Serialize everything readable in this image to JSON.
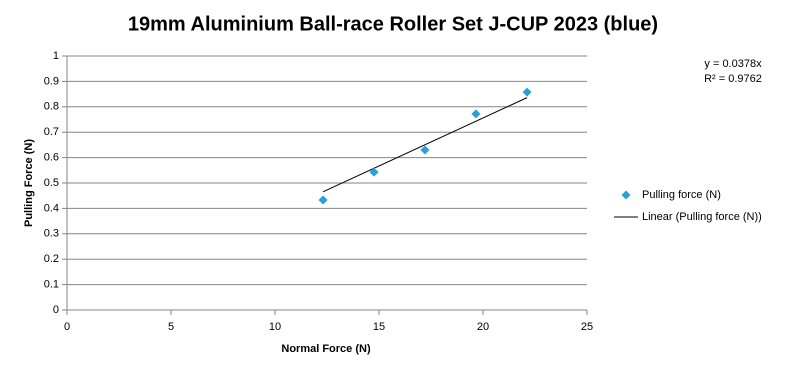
{
  "chart_data": {
    "type": "scatter",
    "title": "19mm Aluminium Ball-race Roller Set J-CUP 2023 (blue)",
    "x_label": "Normal Force (N)",
    "y_label": "Pulling Force (N)",
    "series": [
      {
        "name": "Pulling force (N)",
        "color": "#2a9fdb",
        "x": [
          12.31,
          14.76,
          17.21,
          19.66,
          22.12
        ],
        "values": [
          0.433,
          0.543,
          0.63,
          0.772,
          0.858
        ]
      }
    ],
    "trendline": {
      "name": "Linear (Pulling force (N))",
      "slope": 0.0378,
      "color": "#000000",
      "equation": "y = 0.0378x",
      "r_squared": "R² = 0.9762"
    },
    "xlim": [
      0,
      25
    ],
    "xticks": [
      0,
      5,
      10,
      15,
      20,
      25
    ],
    "ylim": [
      0,
      1
    ],
    "yticks": [
      0,
      0.1,
      0.2,
      0.3,
      0.4,
      0.5,
      0.6,
      0.7,
      0.8,
      0.9,
      1
    ],
    "grid": true,
    "legend": "right"
  }
}
